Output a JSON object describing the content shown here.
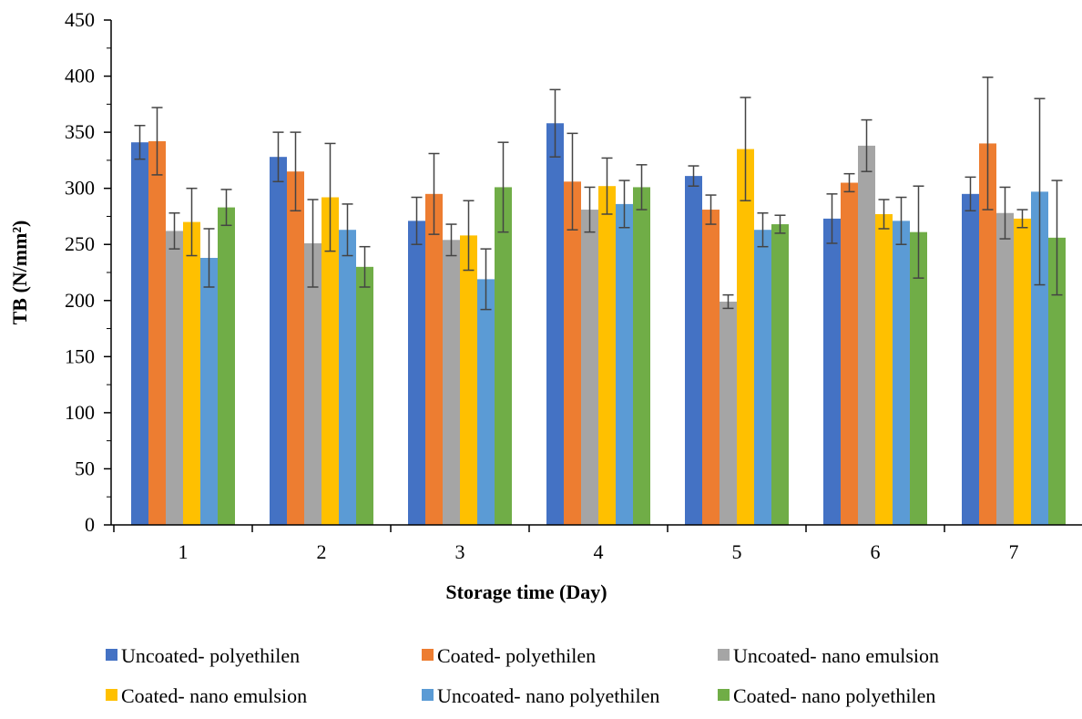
{
  "chart_data": {
    "type": "bar",
    "xlabel": "Storage time (Day)",
    "ylabel": "TB (N/mm²)",
    "ylim": [
      0,
      450
    ],
    "y_ticks": [
      0,
      50,
      100,
      150,
      200,
      250,
      300,
      350,
      400,
      450
    ],
    "grid": false,
    "legend_position": "bottom",
    "error_bars": true,
    "categories": [
      "1",
      "2",
      "3",
      "4",
      "5",
      "6",
      "7"
    ],
    "series": [
      {
        "name": "Uncoated- polyethilen",
        "color": "#4472C4",
        "values": [
          341,
          328,
          271,
          358,
          311,
          273,
          295
        ],
        "errors": [
          15,
          22,
          21,
          30,
          9,
          22,
          15
        ]
      },
      {
        "name": "Coated- polyethilen",
        "color": "#ED7D31",
        "values": [
          342,
          315,
          295,
          306,
          281,
          305,
          340
        ],
        "errors": [
          30,
          35,
          36,
          43,
          13,
          8,
          59
        ]
      },
      {
        "name": "Uncoated- nano emulsion",
        "color": "#A5A5A5",
        "values": [
          262,
          251,
          254,
          281,
          199,
          338,
          278
        ],
        "errors": [
          16,
          39,
          14,
          20,
          6,
          23,
          23
        ]
      },
      {
        "name": "Coated- nano emulsion",
        "color": "#FFC000",
        "values": [
          270,
          292,
          258,
          302,
          335,
          277,
          273
        ],
        "errors": [
          30,
          48,
          31,
          25,
          46,
          13,
          8
        ]
      },
      {
        "name": "Uncoated- nano polyethilen",
        "color": "#5B9BD5",
        "values": [
          238,
          263,
          219,
          286,
          263,
          271,
          297
        ],
        "errors": [
          26,
          23,
          27,
          21,
          15,
          21,
          83
        ]
      },
      {
        "name": "Coated- nano polyethilen",
        "color": "#70AD47",
        "values": [
          283,
          230,
          301,
          301,
          268,
          261,
          256
        ],
        "errors": [
          16,
          18,
          40,
          20,
          8,
          41,
          51
        ]
      }
    ]
  }
}
